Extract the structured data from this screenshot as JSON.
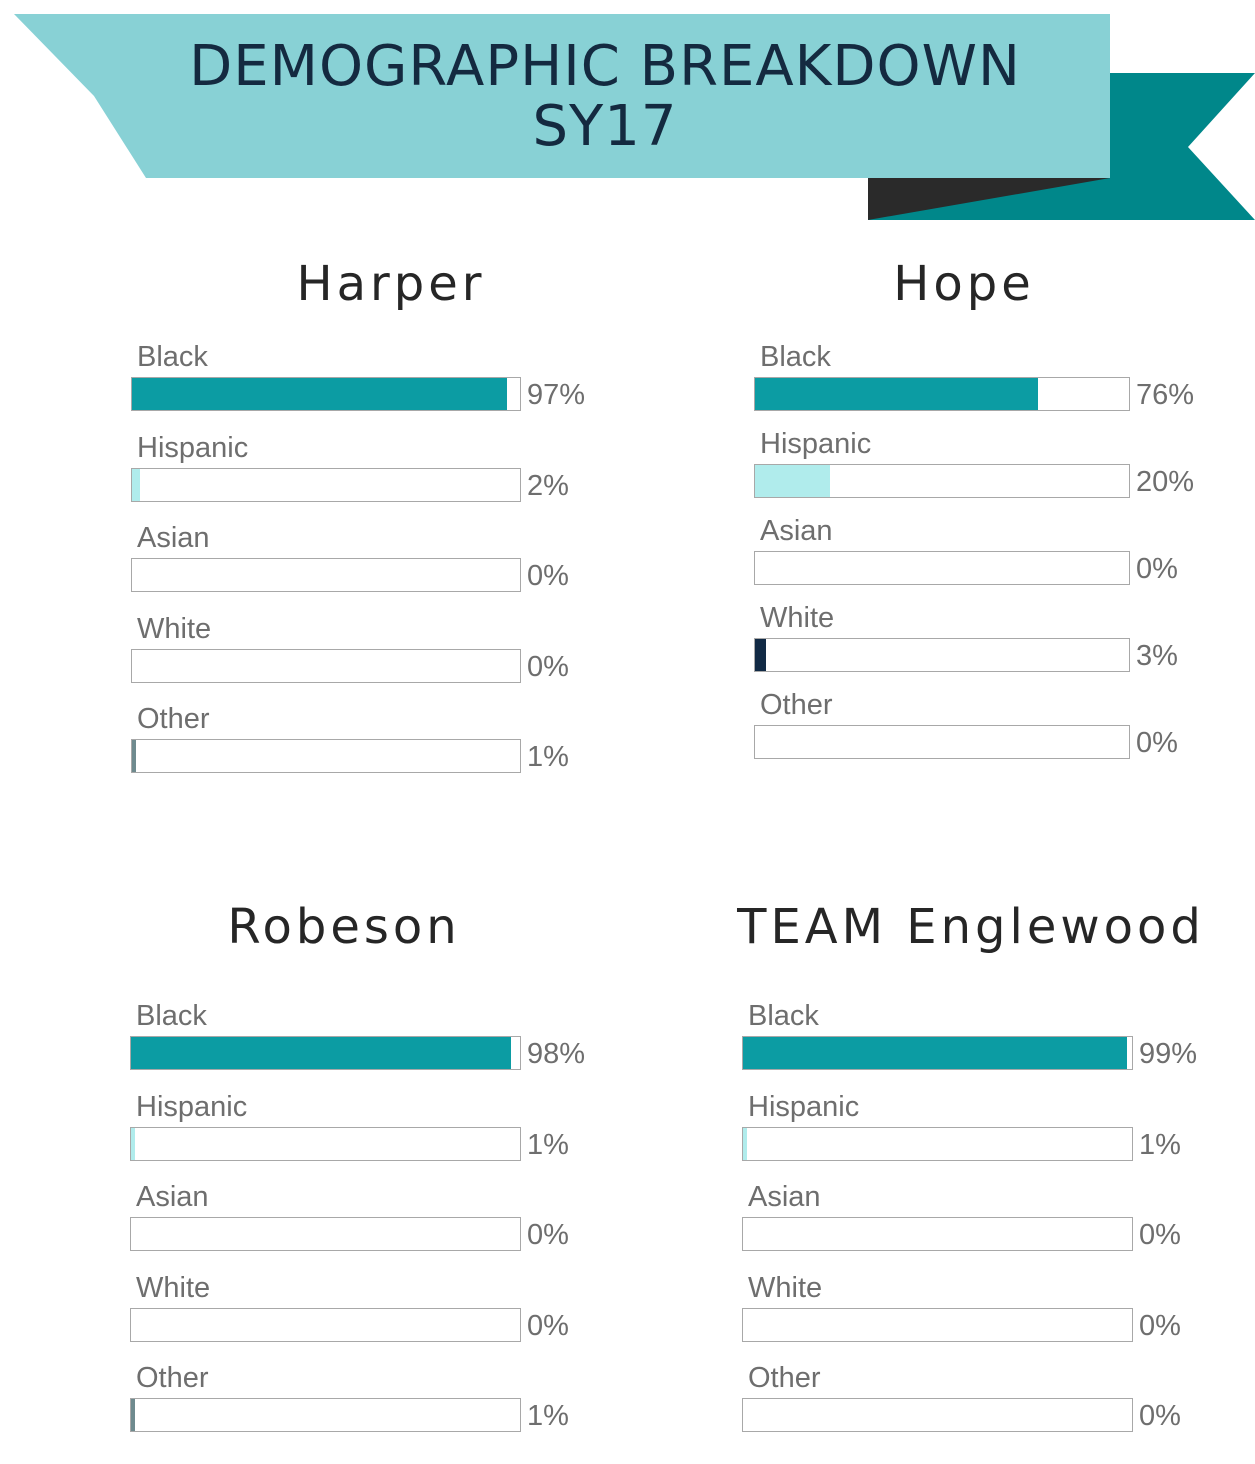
{
  "title": {
    "line1": "DEMOGRAPHIC BREAKDOWN",
    "line2": "SY17"
  },
  "colors": {
    "banner_light": "#88d1d5",
    "banner_dark": "#00878a",
    "banner_shadow": "#2a2a2a",
    "title_text": "#142a40",
    "black": "#0c9ca3",
    "hispanic": "#b0ecec",
    "asian": "#9fb3b8",
    "white": "#112a45",
    "other": "#6e8a8e"
  },
  "chart_data": [
    {
      "type": "bar",
      "title": "Harper",
      "categories": [
        "Black",
        "Hispanic",
        "Asian",
        "White",
        "Other"
      ],
      "values": [
        97,
        2,
        0,
        0,
        1
      ],
      "labels": [
        "97%",
        "2%",
        "0%",
        "0%",
        "1%"
      ],
      "xlim": [
        0,
        100
      ]
    },
    {
      "type": "bar",
      "title": "Hope",
      "categories": [
        "Black",
        "Hispanic",
        "Asian",
        "White",
        "Other"
      ],
      "values": [
        76,
        20,
        0,
        3,
        0
      ],
      "labels": [
        "76%",
        "20%",
        "0%",
        "3%",
        "0%"
      ],
      "xlim": [
        0,
        100
      ]
    },
    {
      "type": "bar",
      "title": "Robeson",
      "categories": [
        "Black",
        "Hispanic",
        "Asian",
        "White",
        "Other"
      ],
      "values": [
        98,
        1,
        0,
        0,
        1
      ],
      "labels": [
        "98%",
        "1%",
        "0%",
        "0%",
        "1%"
      ],
      "xlim": [
        0,
        100
      ]
    },
    {
      "type": "bar",
      "title": "TEAM Englewood",
      "categories": [
        "Black",
        "Hispanic",
        "Asian",
        "White",
        "Other"
      ],
      "values": [
        99,
        1,
        0,
        0,
        0
      ],
      "labels": [
        "99%",
        "1%",
        "0%",
        "0%",
        "0%"
      ],
      "xlim": [
        0,
        100
      ]
    }
  ]
}
